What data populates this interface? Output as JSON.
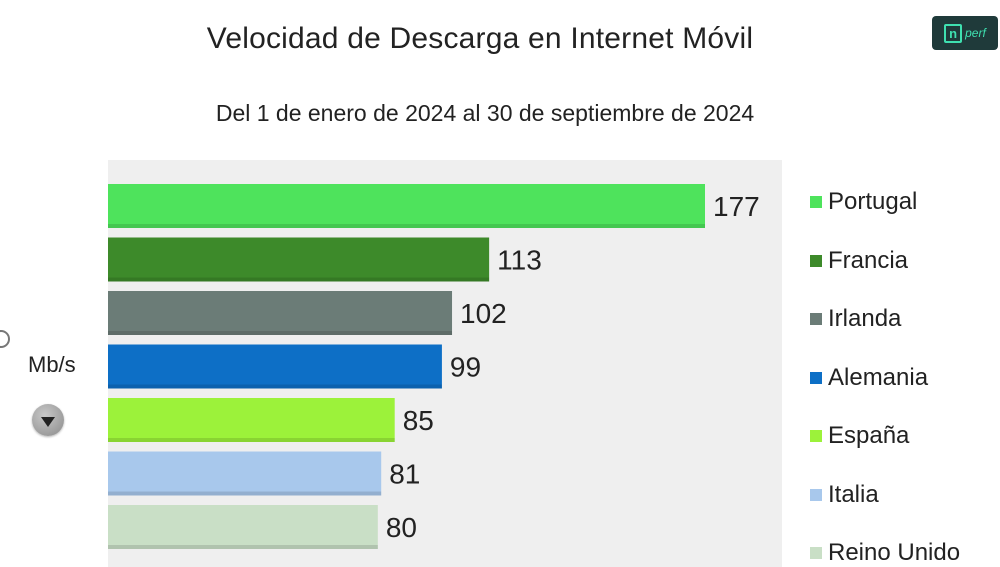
{
  "header": {
    "title": "Velocidad de Descarga en Internet Móvil",
    "subtitle": "Del 1 de enero de 2024 al 30 de septiembre de 2024",
    "logo_n": "n",
    "logo_text": "perf"
  },
  "controls": {
    "unit_label": "Mb/s",
    "dropdown_icon": "chevron-down-icon"
  },
  "chart_data": {
    "type": "bar",
    "orientation": "horizontal",
    "title": "Velocidad de Descarga en Internet Móvil",
    "subtitle": "Del 1 de enero de 2024 al 30 de septiembre de 2024",
    "unit": "Mb/s",
    "categories": [
      "Portugal",
      "Francia",
      "Irlanda",
      "Alemania",
      "España",
      "Italia",
      "Reino Unido"
    ],
    "values": [
      177,
      113,
      102,
      99,
      85,
      81,
      80
    ],
    "colors": [
      "#4ee35c",
      "#3d8a2a",
      "#6b7c77",
      "#0d6fc6",
      "#9cf23a",
      "#a8c8ec",
      "#c9dfc6"
    ],
    "xlim": [
      0,
      177
    ],
    "grid": false,
    "legend_position": "right",
    "data_labels": true
  }
}
